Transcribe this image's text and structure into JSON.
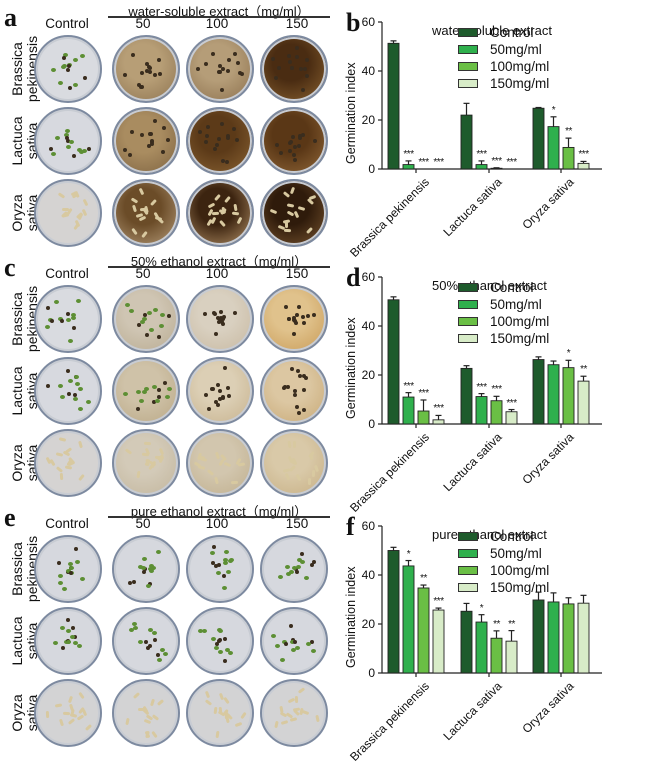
{
  "panels": {
    "a": {
      "letter": "a",
      "group_title": "water-soluble extract（mg/ml）",
      "columns": [
        "Control",
        "50",
        "100",
        "150"
      ],
      "rows": [
        {
          "line1": "Brassica",
          "line2": "pekinensis"
        },
        {
          "line1": "Lactuca",
          "line2": "sativa"
        },
        {
          "line1": "Oryza",
          "line2": "sativa"
        }
      ]
    },
    "c": {
      "letter": "c",
      "group_title": "50% ethanol extract（mg/ml）",
      "columns": [
        "Control",
        "50",
        "100",
        "150"
      ],
      "rows": [
        {
          "line1": "Brassica",
          "line2": "pekinensis"
        },
        {
          "line1": "Lactuca",
          "line2": "sativa"
        },
        {
          "line1": "Oryza",
          "line2": "sativa"
        }
      ]
    },
    "e": {
      "letter": "e",
      "group_title": "pure ethanol extract（mg/ml）",
      "columns": [
        "Control",
        "50",
        "100",
        "150"
      ],
      "rows": [
        {
          "line1": "Brassica",
          "line2": "pekinensis"
        },
        {
          "line1": "Lactuca",
          "line2": "sativa"
        },
        {
          "line1": "Oryza",
          "line2": "sativa"
        }
      ]
    }
  },
  "colors": {
    "control": "#1e5b2c",
    "50mg": "#2fb04d",
    "100mg": "#6abf45",
    "150mg": "#d8ecc8",
    "axis": "#222222"
  },
  "chart_data": [
    {
      "panel": "b",
      "type": "bar",
      "title": "water-soluble extract",
      "xlabel": "",
      "ylabel": "Germination index",
      "ylim": [
        0,
        60
      ],
      "yticks": [
        0,
        20,
        40,
        60
      ],
      "categories": [
        "Brassica pekinensis",
        "Lactuca sativa",
        "Oryza sativa"
      ],
      "legend_position": "right",
      "series": [
        {
          "name": "Control",
          "values": [
            51.3,
            22.0,
            24.8
          ],
          "errors": [
            1.0,
            4.8,
            0.3
          ],
          "significance": [
            "",
            "",
            ""
          ]
        },
        {
          "name": "50mg/ml",
          "values": [
            1.8,
            1.8,
            17.3
          ],
          "errors": [
            1.5,
            1.5,
            4.0
          ],
          "significance": [
            "***",
            "***",
            "*"
          ]
        },
        {
          "name": "100mg/ml",
          "values": [
            0,
            0.3,
            8.8
          ],
          "errors": [
            0,
            0.2,
            3.8
          ],
          "significance": [
            "***",
            "***",
            "**"
          ]
        },
        {
          "name": "150mg/ml",
          "values": [
            0,
            0,
            2.3
          ],
          "errors": [
            0,
            0,
            0.8
          ],
          "significance": [
            "***",
            "***",
            "***"
          ]
        }
      ]
    },
    {
      "panel": "d",
      "type": "bar",
      "title": "50% ethanol extract",
      "xlabel": "",
      "ylabel": "Germination index",
      "ylim": [
        0,
        60
      ],
      "yticks": [
        0,
        20,
        40,
        60
      ],
      "categories": [
        "Brassica pekinensis",
        "Lactuca sativa",
        "Oryza sativa"
      ],
      "legend_position": "right",
      "series": [
        {
          "name": "Control",
          "values": [
            50.7,
            22.7,
            26.3
          ],
          "errors": [
            1.2,
            1.1,
            1.1
          ],
          "significance": [
            "",
            "",
            ""
          ]
        },
        {
          "name": "50mg/ml",
          "values": [
            11.0,
            11.2,
            24.2
          ],
          "errors": [
            1.8,
            1.2,
            1.5
          ],
          "significance": [
            "***",
            "***",
            ""
          ]
        },
        {
          "name": "100mg/ml",
          "values": [
            5.3,
            9.5,
            23.0
          ],
          "errors": [
            4.5,
            1.8,
            3.0
          ],
          "significance": [
            "***",
            "***",
            "*"
          ]
        },
        {
          "name": "150mg/ml",
          "values": [
            1.7,
            5.0,
            17.5
          ],
          "errors": [
            1.8,
            0.9,
            2.0
          ],
          "significance": [
            "***",
            "***",
            "**"
          ]
        }
      ]
    },
    {
      "panel": "f",
      "type": "bar",
      "title": "pure ethanol extract",
      "xlabel": "",
      "ylabel": "Germination index",
      "ylim": [
        0,
        60
      ],
      "yticks": [
        0,
        20,
        40,
        60
      ],
      "categories": [
        "Brassica pekinensis",
        "Lactuca sativa",
        "Oryza sativa"
      ],
      "legend_position": "right",
      "series": [
        {
          "name": "Control",
          "values": [
            50.0,
            25.2,
            29.8
          ],
          "errors": [
            1.3,
            3.2,
            3.2
          ],
          "significance": [
            "",
            "",
            ""
          ]
        },
        {
          "name": "50mg/ml",
          "values": [
            43.7,
            20.8,
            29.0
          ],
          "errors": [
            2.2,
            3.0,
            3.7
          ],
          "significance": [
            "*",
            "*",
            ""
          ]
        },
        {
          "name": "100mg/ml",
          "values": [
            34.7,
            14.2,
            28.2
          ],
          "errors": [
            1.2,
            3.0,
            2.5
          ],
          "significance": [
            "**",
            "**",
            ""
          ]
        },
        {
          "name": "150mg/ml",
          "values": [
            25.7,
            13.0,
            28.5
          ],
          "errors": [
            0.8,
            4.3,
            3.2
          ],
          "significance": [
            "***",
            "**",
            ""
          ]
        }
      ]
    }
  ]
}
